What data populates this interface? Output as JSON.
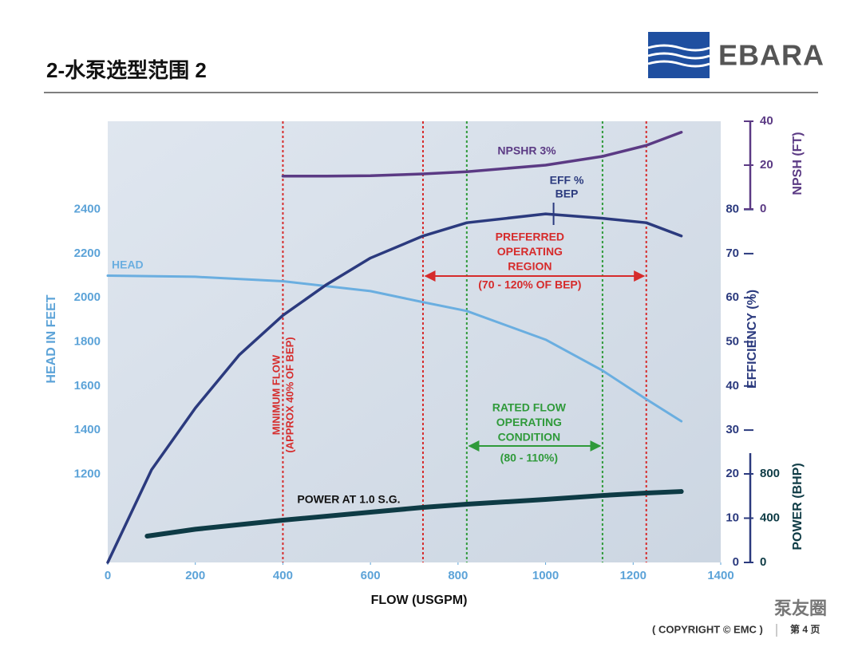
{
  "header": {
    "title": "2-水泵选型范围 2",
    "logo": "EBARA"
  },
  "footer": {
    "copyright": "( COPYRIGHT © EMC )",
    "page": "第 4 页",
    "watermark": "泵友圈"
  },
  "chart_data": {
    "type": "line",
    "x_label": "FLOW (USGPM)",
    "xlim": [
      0,
      1400
    ],
    "xticks": [
      0,
      200,
      400,
      600,
      800,
      1000,
      1200,
      1400
    ],
    "axes": [
      {
        "label": "HEAD IN FEET",
        "lim": [
          800,
          2800
        ],
        "ticks": [
          1200,
          1400,
          1600,
          1800,
          2000,
          2200,
          2400
        ],
        "color": "#5ca3d8"
      },
      {
        "label": "EFFICIENCY (%)",
        "lim": [
          0,
          100
        ],
        "ticks": [
          30,
          40,
          50,
          60,
          70,
          80
        ],
        "color": "#2b3a7e"
      },
      {
        "label": "NPSH (FT)",
        "lim": [
          0,
          40
        ],
        "ticks": [
          0,
          20,
          40
        ],
        "color": "#5b3a84"
      },
      {
        "lim": [
          0,
          20
        ],
        "ticks": [
          0,
          10,
          20
        ],
        "color": "#2b3a7e"
      },
      {
        "label": "POWER (BHP)",
        "lim": [
          0,
          800
        ],
        "ticks": [
          0,
          400,
          800
        ],
        "color": "#0e3b45"
      }
    ],
    "series": [
      {
        "name": "HEAD",
        "color": "#6aaee0",
        "axis": 0,
        "x": [
          0,
          200,
          400,
          600,
          720,
          820,
          1000,
          1130,
          1230,
          1310
        ],
        "values": [
          2100,
          2095,
          2075,
          2030,
          1980,
          1940,
          1810,
          1670,
          1540,
          1440
        ]
      },
      {
        "name": "EFF %",
        "color": "#2b3a7e",
        "axis": 1,
        "x": [
          0,
          100,
          200,
          300,
          400,
          500,
          600,
          720,
          820,
          1000,
          1130,
          1230,
          1310
        ],
        "values": [
          0,
          21,
          35,
          47,
          56,
          63,
          69,
          74,
          77,
          79,
          78,
          77,
          74
        ]
      },
      {
        "name": "NPSHR 3%",
        "color": "#5b3a84",
        "axis": 2,
        "x": [
          400,
          500,
          600,
          720,
          820,
          1000,
          1130,
          1230,
          1310
        ],
        "values": [
          15,
          15,
          15.2,
          16,
          17,
          20,
          24,
          29,
          35
        ]
      },
      {
        "name": "POWER AT 1.0 S.G.",
        "color": "#0e3b45",
        "axis": 4,
        "x": [
          90,
          200,
          400,
          600,
          720,
          820,
          1000,
          1130,
          1230,
          1310
        ],
        "values": [
          238,
          300,
          382,
          454,
          497,
          526,
          569,
          605,
          627,
          641
        ]
      }
    ],
    "bep_label": "BEP",
    "bep_x": 1000,
    "min_flow": {
      "x": 400,
      "color": "#d62b2b",
      "lines": [
        "MINIMUM FLOW",
        "(APPROX 40% OF BEP)"
      ]
    },
    "ranges": [
      {
        "from": 720,
        "to": 1230,
        "color": "#d62b2b",
        "lines": [
          "PREFERRED",
          "OPERATING",
          "REGION",
          "(70 - 120% OF BEP)"
        ]
      },
      {
        "from": 820,
        "to": 1130,
        "color": "#2f9a3a",
        "lines": [
          "RATED FLOW",
          "OPERATING",
          "CONDITION",
          "(80 - 110%)"
        ]
      }
    ]
  }
}
